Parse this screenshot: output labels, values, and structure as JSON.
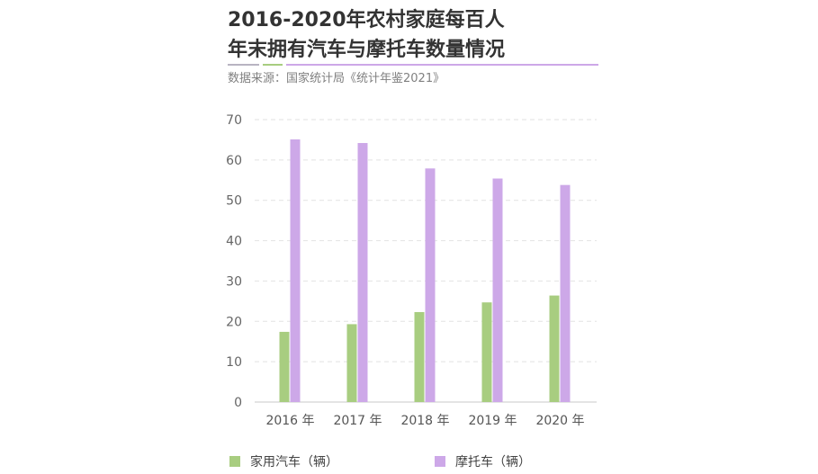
{
  "title": {
    "line1": "2016-2020年农村家庭每百人",
    "line2": "年末拥有汽车与摩托车数量情况"
  },
  "source": "数据来源：国家统计局《统计年鉴2021》",
  "colors": {
    "title_text": "#333333",
    "rule_grey": "#b8b4c2",
    "rule_green": "#a8cd80",
    "rule_purple": "#cda8e8",
    "grid": "#e2e2e2",
    "axis": "#c8c8c8",
    "tick_text": "#666666"
  },
  "chart_data": {
    "type": "bar",
    "title": "2016-2020年农村家庭每百人年末拥有汽车与摩托车数量情况",
    "xlabel": "",
    "ylabel": "",
    "categories": [
      "2016 年",
      "2017 年",
      "2018 年",
      "2019 年",
      "2020 年"
    ],
    "series": [
      {
        "name": "家用汽车（辆）",
        "color": "#a8cd80",
        "values": [
          17.4,
          19.3,
          22.3,
          24.7,
          26.4
        ]
      },
      {
        "name": "摩托车（辆）",
        "color": "#cda8e8",
        "values": [
          65.1,
          64.2,
          57.9,
          55.4,
          53.8
        ]
      }
    ],
    "ylim": [
      0,
      70
    ],
    "yticks": [
      0,
      10,
      20,
      30,
      40,
      50,
      60,
      70
    ],
    "grid": true,
    "legend": "bottom-left"
  }
}
